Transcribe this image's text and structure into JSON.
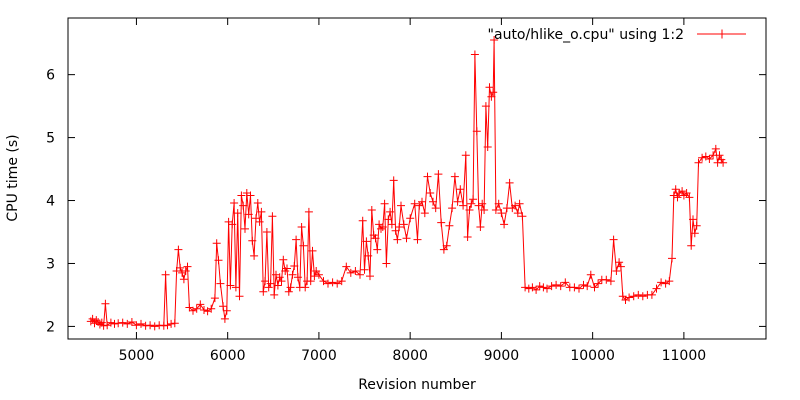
{
  "chart_data": {
    "type": "line",
    "xlabel": "Revision number",
    "ylabel": "CPU time (s)",
    "xlim": [
      4250,
      11900
    ],
    "ylim": [
      1.8,
      6.9
    ],
    "xticks": [
      5000,
      6000,
      7000,
      8000,
      9000,
      10000,
      11000
    ],
    "yticks": [
      2,
      3,
      4,
      5,
      6
    ],
    "grid": false,
    "legend_position": "top-right",
    "series": [
      {
        "name": "\"auto/hlike_o.cpu\" using 1:2",
        "color": "#ff0000",
        "marker": "plus",
        "points": [
          [
            4500,
            2.08
          ],
          [
            4520,
            2.12
          ],
          [
            4540,
            2.05
          ],
          [
            4560,
            2.1
          ],
          [
            4580,
            2.07
          ],
          [
            4600,
            2.03
          ],
          [
            4620,
            2.06
          ],
          [
            4640,
            2.01
          ],
          [
            4660,
            2.36
          ],
          [
            4680,
            2.02
          ],
          [
            4720,
            2.06
          ],
          [
            4760,
            2.04
          ],
          [
            4800,
            2.05
          ],
          [
            4850,
            2.06
          ],
          [
            4900,
            2.04
          ],
          [
            4950,
            2.07
          ],
          [
            5000,
            2.02
          ],
          [
            5050,
            2.04
          ],
          [
            5100,
            2.01
          ],
          [
            5150,
            2.02
          ],
          [
            5200,
            2.0
          ],
          [
            5250,
            2.02
          ],
          [
            5300,
            2.01
          ],
          [
            5320,
            2.82
          ],
          [
            5340,
            2.02
          ],
          [
            5380,
            2.04
          ],
          [
            5420,
            2.05
          ],
          [
            5440,
            2.88
          ],
          [
            5460,
            3.22
          ],
          [
            5480,
            2.93
          ],
          [
            5500,
            2.85
          ],
          [
            5520,
            2.75
          ],
          [
            5540,
            2.88
          ],
          [
            5560,
            2.95
          ],
          [
            5580,
            2.3
          ],
          [
            5620,
            2.25
          ],
          [
            5660,
            2.28
          ],
          [
            5700,
            2.35
          ],
          [
            5740,
            2.26
          ],
          [
            5780,
            2.24
          ],
          [
            5820,
            2.28
          ],
          [
            5860,
            2.45
          ],
          [
            5880,
            3.32
          ],
          [
            5900,
            3.05
          ],
          [
            5920,
            2.68
          ],
          [
            5950,
            2.32
          ],
          [
            5970,
            2.12
          ],
          [
            5990,
            2.25
          ],
          [
            6010,
            3.66
          ],
          [
            6030,
            2.65
          ],
          [
            6050,
            3.62
          ],
          [
            6070,
            3.96
          ],
          [
            6090,
            2.62
          ],
          [
            6110,
            3.8
          ],
          [
            6130,
            2.48
          ],
          [
            6150,
            4.08
          ],
          [
            6170,
            3.92
          ],
          [
            6190,
            3.55
          ],
          [
            6210,
            4.12
          ],
          [
            6230,
            3.78
          ],
          [
            6250,
            4.08
          ],
          [
            6270,
            3.36
          ],
          [
            6290,
            3.12
          ],
          [
            6310,
            3.72
          ],
          [
            6330,
            3.96
          ],
          [
            6350,
            3.66
          ],
          [
            6370,
            3.82
          ],
          [
            6390,
            2.55
          ],
          [
            6410,
            2.72
          ],
          [
            6430,
            3.5
          ],
          [
            6450,
            2.62
          ],
          [
            6470,
            2.68
          ],
          [
            6490,
            3.75
          ],
          [
            6510,
            2.5
          ],
          [
            6530,
            2.82
          ],
          [
            6550,
            2.65
          ],
          [
            6570,
            2.78
          ],
          [
            6590,
            2.72
          ],
          [
            6610,
            3.06
          ],
          [
            6630,
            2.88
          ],
          [
            6650,
            2.92
          ],
          [
            6670,
            2.55
          ],
          [
            6690,
            2.62
          ],
          [
            6710,
            2.82
          ],
          [
            6730,
            2.96
          ],
          [
            6750,
            3.38
          ],
          [
            6770,
            2.78
          ],
          [
            6790,
            2.62
          ],
          [
            6810,
            3.58
          ],
          [
            6830,
            3.28
          ],
          [
            6850,
            2.62
          ],
          [
            6870,
            2.72
          ],
          [
            6890,
            3.82
          ],
          [
            6910,
            2.72
          ],
          [
            6930,
            3.2
          ],
          [
            6950,
            2.8
          ],
          [
            6970,
            2.88
          ],
          [
            7000,
            2.82
          ],
          [
            7050,
            2.72
          ],
          [
            7100,
            2.68
          ],
          [
            7150,
            2.7
          ],
          [
            7200,
            2.68
          ],
          [
            7250,
            2.72
          ],
          [
            7300,
            2.95
          ],
          [
            7350,
            2.85
          ],
          [
            7400,
            2.88
          ],
          [
            7450,
            2.82
          ],
          [
            7480,
            3.68
          ],
          [
            7500,
            2.9
          ],
          [
            7520,
            3.35
          ],
          [
            7540,
            3.12
          ],
          [
            7560,
            2.8
          ],
          [
            7580,
            3.85
          ],
          [
            7600,
            3.45
          ],
          [
            7620,
            3.4
          ],
          [
            7640,
            3.22
          ],
          [
            7660,
            3.62
          ],
          [
            7680,
            3.55
          ],
          [
            7700,
            3.58
          ],
          [
            7720,
            3.95
          ],
          [
            7740,
            3.0
          ],
          [
            7760,
            3.7
          ],
          [
            7780,
            3.82
          ],
          [
            7800,
            3.62
          ],
          [
            7820,
            4.32
          ],
          [
            7840,
            3.52
          ],
          [
            7860,
            3.38
          ],
          [
            7880,
            3.58
          ],
          [
            7900,
            3.92
          ],
          [
            7930,
            3.62
          ],
          [
            7960,
            3.4
          ],
          [
            8000,
            3.72
          ],
          [
            8050,
            3.95
          ],
          [
            8080,
            3.38
          ],
          [
            8100,
            3.92
          ],
          [
            8130,
            3.98
          ],
          [
            8160,
            3.8
          ],
          [
            8190,
            4.38
          ],
          [
            8220,
            4.12
          ],
          [
            8250,
            3.98
          ],
          [
            8280,
            3.88
          ],
          [
            8310,
            4.42
          ],
          [
            8340,
            3.65
          ],
          [
            8370,
            3.22
          ],
          [
            8400,
            3.28
          ],
          [
            8430,
            3.6
          ],
          [
            8460,
            3.88
          ],
          [
            8490,
            4.38
          ],
          [
            8520,
            3.98
          ],
          [
            8550,
            4.18
          ],
          [
            8580,
            3.92
          ],
          [
            8610,
            4.72
          ],
          [
            8630,
            3.42
          ],
          [
            8650,
            3.85
          ],
          [
            8670,
            3.95
          ],
          [
            8690,
            4.02
          ],
          [
            8710,
            6.32
          ],
          [
            8730,
            5.1
          ],
          [
            8750,
            3.92
          ],
          [
            8770,
            3.58
          ],
          [
            8790,
            3.95
          ],
          [
            8810,
            3.85
          ],
          [
            8830,
            5.5
          ],
          [
            8850,
            4.85
          ],
          [
            8870,
            5.8
          ],
          [
            8890,
            5.65
          ],
          [
            8910,
            5.72
          ],
          [
            8920,
            6.55
          ],
          [
            8940,
            3.85
          ],
          [
            8970,
            3.95
          ],
          [
            9000,
            3.8
          ],
          [
            9030,
            3.62
          ],
          [
            9060,
            3.88
          ],
          [
            9090,
            4.28
          ],
          [
            9120,
            3.88
          ],
          [
            9150,
            3.92
          ],
          [
            9180,
            3.8
          ],
          [
            9200,
            3.95
          ],
          [
            9230,
            3.75
          ],
          [
            9260,
            2.62
          ],
          [
            9300,
            2.6
          ],
          [
            9340,
            2.62
          ],
          [
            9380,
            2.58
          ],
          [
            9420,
            2.64
          ],
          [
            9460,
            2.62
          ],
          [
            9500,
            2.6
          ],
          [
            9550,
            2.64
          ],
          [
            9600,
            2.66
          ],
          [
            9650,
            2.64
          ],
          [
            9700,
            2.7
          ],
          [
            9750,
            2.62
          ],
          [
            9800,
            2.62
          ],
          [
            9850,
            2.6
          ],
          [
            9900,
            2.66
          ],
          [
            9940,
            2.64
          ],
          [
            9980,
            2.82
          ],
          [
            10020,
            2.62
          ],
          [
            10060,
            2.68
          ],
          [
            10100,
            2.74
          ],
          [
            10150,
            2.74
          ],
          [
            10200,
            2.72
          ],
          [
            10230,
            3.38
          ],
          [
            10260,
            2.88
          ],
          [
            10290,
            3.02
          ],
          [
            10310,
            2.95
          ],
          [
            10330,
            2.48
          ],
          [
            10360,
            2.42
          ],
          [
            10400,
            2.46
          ],
          [
            10450,
            2.48
          ],
          [
            10500,
            2.5
          ],
          [
            10550,
            2.48
          ],
          [
            10600,
            2.5
          ],
          [
            10650,
            2.5
          ],
          [
            10700,
            2.6
          ],
          [
            10750,
            2.7
          ],
          [
            10800,
            2.68
          ],
          [
            10840,
            2.72
          ],
          [
            10870,
            3.08
          ],
          [
            10890,
            4.08
          ],
          [
            10910,
            4.18
          ],
          [
            10930,
            4.05
          ],
          [
            10950,
            4.12
          ],
          [
            10980,
            4.15
          ],
          [
            11000,
            4.08
          ],
          [
            11030,
            4.12
          ],
          [
            11060,
            4.05
          ],
          [
            11080,
            3.28
          ],
          [
            11100,
            3.7
          ],
          [
            11120,
            3.48
          ],
          [
            11140,
            3.6
          ],
          [
            11160,
            4.6
          ],
          [
            11200,
            4.68
          ],
          [
            11240,
            4.7
          ],
          [
            11280,
            4.66
          ],
          [
            11320,
            4.72
          ],
          [
            11350,
            4.82
          ],
          [
            11370,
            4.6
          ],
          [
            11390,
            4.72
          ],
          [
            11410,
            4.65
          ],
          [
            11430,
            4.6
          ]
        ]
      }
    ]
  }
}
